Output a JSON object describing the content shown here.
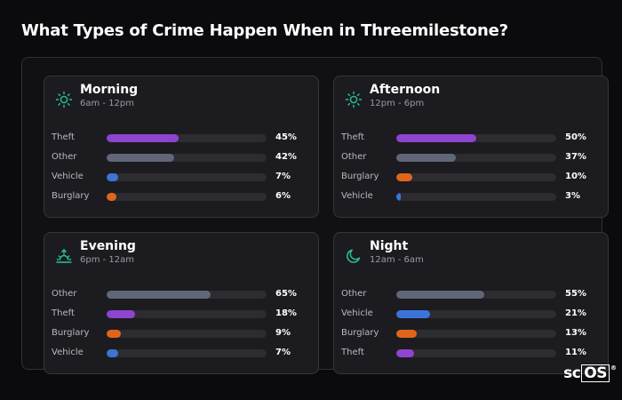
{
  "title": "What Types of Crime Happen When in Threemilestone?",
  "colors": {
    "Theft": "#8e44cf",
    "Other": "#5f6778",
    "Vehicle": "#3b74d9",
    "Burglary": "#e0651b",
    "icon": "#26c49a"
  },
  "cards": [
    {
      "title": "Morning",
      "subtitle": "6am - 12pm",
      "icon": "sun-icon",
      "rows": [
        {
          "label": "Theft",
          "pct": "45%",
          "value": 45
        },
        {
          "label": "Other",
          "pct": "42%",
          "value": 42
        },
        {
          "label": "Vehicle",
          "pct": "7%",
          "value": 7
        },
        {
          "label": "Burglary",
          "pct": "6%",
          "value": 6
        }
      ]
    },
    {
      "title": "Afternoon",
      "subtitle": "12pm - 6pm",
      "icon": "sun-icon",
      "rows": [
        {
          "label": "Theft",
          "pct": "50%",
          "value": 50
        },
        {
          "label": "Other",
          "pct": "37%",
          "value": 37
        },
        {
          "label": "Burglary",
          "pct": "10%",
          "value": 10
        },
        {
          "label": "Vehicle",
          "pct": "3%",
          "value": 3
        }
      ]
    },
    {
      "title": "Evening",
      "subtitle": "6pm - 12am",
      "icon": "sunset-icon",
      "rows": [
        {
          "label": "Other",
          "pct": "65%",
          "value": 65
        },
        {
          "label": "Theft",
          "pct": "18%",
          "value": 18
        },
        {
          "label": "Burglary",
          "pct": "9%",
          "value": 9
        },
        {
          "label": "Vehicle",
          "pct": "7%",
          "value": 7
        }
      ]
    },
    {
      "title": "Night",
      "subtitle": "12am - 6am",
      "icon": "moon-icon",
      "rows": [
        {
          "label": "Other",
          "pct": "55%",
          "value": 55
        },
        {
          "label": "Vehicle",
          "pct": "21%",
          "value": 21
        },
        {
          "label": "Burglary",
          "pct": "13%",
          "value": 13
        },
        {
          "label": "Theft",
          "pct": "11%",
          "value": 11
        }
      ]
    }
  ],
  "logo": {
    "text": "sc",
    "boxed": "OS",
    "mark": "®"
  }
}
